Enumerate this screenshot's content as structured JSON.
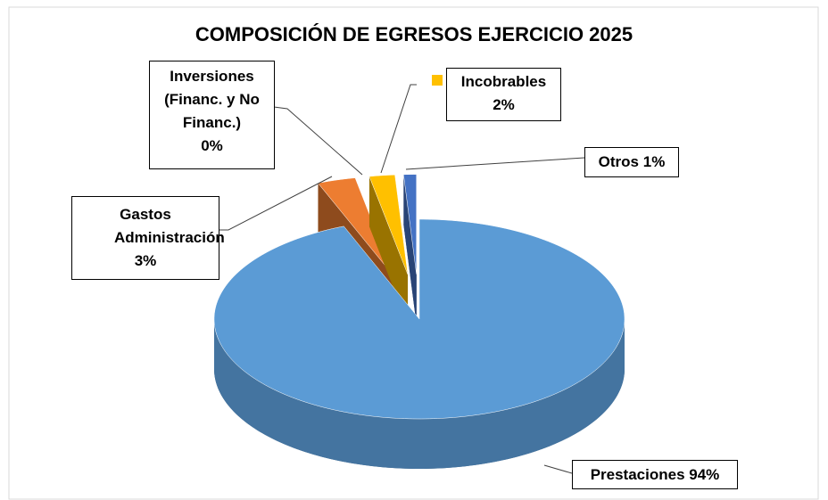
{
  "chart_data": {
    "type": "pie3d",
    "title": "COMPOSICIÓN DE EGRESOS EJERCICIO 2025",
    "categories": [
      "Prestaciones",
      "Gastos Administración",
      "Inversiones (Financ. y No Financ.)",
      "Incobrables",
      "Otros"
    ],
    "values": [
      94,
      3,
      0,
      2,
      1
    ],
    "value_labels": [
      "94%",
      "3%",
      "0%",
      "2%",
      "1%"
    ],
    "colors": [
      "#5b9bd5",
      "#ed7d31",
      "#a5a5a5",
      "#ffc000",
      "#4472c4"
    ]
  }
}
